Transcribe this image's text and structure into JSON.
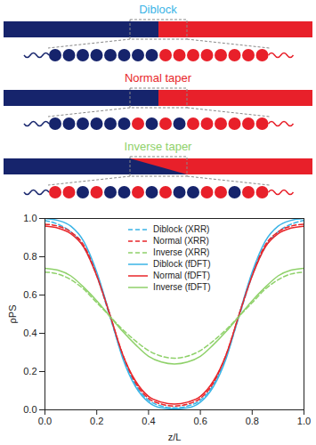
{
  "diagram": {
    "rows": [
      {
        "label": "Diblock",
        "color": "#3bb4e6"
      },
      {
        "label": "Normal taper",
        "color": "#e8262a"
      },
      {
        "label": "Inverse taper",
        "color": "#8fd16a"
      }
    ]
  },
  "chart_data": {
    "type": "line",
    "x_label": "z/L",
    "y_label": "ρPS",
    "x": [
      0.0,
      0.05,
      0.1,
      0.15,
      0.2,
      0.25,
      0.3,
      0.35,
      0.4,
      0.45,
      0.5,
      0.55,
      0.6,
      0.65,
      0.7,
      0.75,
      0.8,
      0.85,
      0.9,
      0.95,
      1.0
    ],
    "series": [
      {
        "name": "Diblock (XRR)",
        "color": "#3bb4e6",
        "line_style": "dashed",
        "values": [
          0.99,
          0.97,
          0.93,
          0.85,
          0.7,
          0.49,
          0.28,
          0.13,
          0.05,
          0.02,
          0.01,
          0.02,
          0.05,
          0.13,
          0.28,
          0.49,
          0.7,
          0.85,
          0.93,
          0.97,
          0.99
        ]
      },
      {
        "name": "Normal (XRR)",
        "color": "#e8262a",
        "line_style": "dashed",
        "values": [
          0.97,
          0.96,
          0.93,
          0.86,
          0.71,
          0.5,
          0.29,
          0.14,
          0.06,
          0.03,
          0.02,
          0.03,
          0.06,
          0.14,
          0.29,
          0.5,
          0.71,
          0.86,
          0.93,
          0.96,
          0.97
        ]
      },
      {
        "name": "Inverse (XRR)",
        "color": "#8fd16a",
        "line_style": "dashed",
        "values": [
          0.72,
          0.71,
          0.68,
          0.63,
          0.56,
          0.49,
          0.42,
          0.36,
          0.31,
          0.28,
          0.27,
          0.28,
          0.31,
          0.36,
          0.42,
          0.49,
          0.56,
          0.63,
          0.68,
          0.71,
          0.72
        ]
      },
      {
        "name": "Diblock (fDFT)",
        "color": "#3bb4e6",
        "line_style": "solid",
        "values": [
          1.0,
          0.99,
          0.96,
          0.88,
          0.72,
          0.5,
          0.27,
          0.12,
          0.04,
          0.01,
          0.005,
          0.01,
          0.04,
          0.12,
          0.27,
          0.5,
          0.72,
          0.88,
          0.96,
          0.99,
          1.0
        ]
      },
      {
        "name": "Normal (fDFT)",
        "color": "#e8262a",
        "line_style": "solid",
        "values": [
          0.96,
          0.95,
          0.92,
          0.85,
          0.7,
          0.5,
          0.29,
          0.15,
          0.07,
          0.04,
          0.03,
          0.04,
          0.07,
          0.15,
          0.29,
          0.5,
          0.7,
          0.85,
          0.92,
          0.95,
          0.96
        ]
      },
      {
        "name": "Inverse (fDFT)",
        "color": "#8fd16a",
        "line_style": "solid",
        "values": [
          0.74,
          0.73,
          0.7,
          0.64,
          0.57,
          0.49,
          0.41,
          0.34,
          0.28,
          0.25,
          0.24,
          0.25,
          0.28,
          0.34,
          0.41,
          0.49,
          0.57,
          0.64,
          0.7,
          0.73,
          0.74
        ]
      }
    ],
    "xlim": [
      0,
      1
    ],
    "ylim": [
      0,
      1
    ],
    "xticks": [
      {
        "value": 0,
        "label": "0.0"
      },
      {
        "value": 0.2,
        "label": "0.2"
      },
      {
        "value": 0.4,
        "label": "0.4"
      },
      {
        "value": 0.6,
        "label": "0.6"
      },
      {
        "value": 0.8,
        "label": "0.8"
      },
      {
        "value": 1,
        "label": "1.0"
      }
    ],
    "yticks": [
      {
        "value": 0,
        "label": "0.0"
      },
      {
        "value": 0.2,
        "label": "0.2"
      },
      {
        "value": 0.4,
        "label": "0.4"
      },
      {
        "value": 0.6,
        "label": "0.6"
      },
      {
        "value": 0.8,
        "label": "0.8"
      },
      {
        "value": 1,
        "label": "1.0"
      }
    ],
    "legend": "upper center",
    "grid": false
  }
}
